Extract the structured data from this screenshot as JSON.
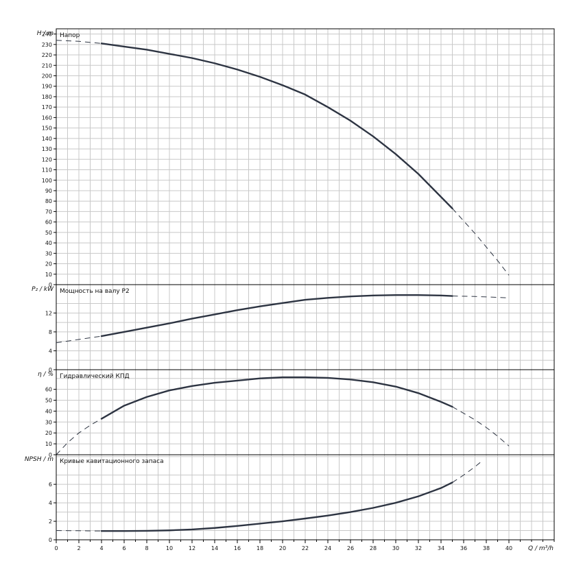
{
  "chart_data": [
    {
      "type": "line",
      "panel": "head",
      "title": "Напор",
      "ylabel": "H / m",
      "ylim": [
        0,
        245
      ],
      "yticks": [
        0,
        10,
        20,
        30,
        40,
        50,
        60,
        70,
        80,
        90,
        100,
        110,
        120,
        130,
        140,
        150,
        160,
        170,
        180,
        190,
        200,
        210,
        220,
        230,
        240
      ],
      "grid": true,
      "series": [
        {
          "style": "dashed",
          "x": [
            0,
            2,
            4
          ],
          "y": [
            234,
            233,
            231
          ]
        },
        {
          "style": "solid",
          "x": [
            4,
            6,
            8,
            10,
            12,
            14,
            16,
            18,
            20,
            22,
            24,
            26,
            28,
            30,
            32,
            34,
            35
          ],
          "y": [
            231,
            228,
            225,
            221,
            217,
            212,
            206,
            199,
            191,
            182,
            170,
            157,
            142,
            125,
            106,
            84,
            73
          ]
        },
        {
          "style": "dashed",
          "x": [
            35,
            36,
            37,
            38,
            39,
            40
          ],
          "y": [
            73,
            61,
            49,
            36,
            23,
            9
          ]
        }
      ]
    },
    {
      "type": "line",
      "panel": "power",
      "title": "Мощность на валу P2",
      "ylabel": "P₂ / kW",
      "ylim": [
        0,
        18
      ],
      "yticks": [
        0,
        4,
        8,
        12
      ],
      "grid": true,
      "series": [
        {
          "style": "dashed",
          "x": [
            0,
            2,
            4
          ],
          "y": [
            5.7,
            6.4,
            7.1
          ]
        },
        {
          "style": "solid",
          "x": [
            4,
            6,
            8,
            10,
            12,
            14,
            16,
            18,
            20,
            22,
            24,
            26,
            28,
            30,
            32,
            34,
            35
          ],
          "y": [
            7.1,
            8.0,
            8.9,
            9.8,
            10.8,
            11.7,
            12.6,
            13.4,
            14.1,
            14.8,
            15.2,
            15.5,
            15.7,
            15.8,
            15.8,
            15.7,
            15.6
          ]
        },
        {
          "style": "dashed",
          "x": [
            35,
            37,
            40
          ],
          "y": [
            15.6,
            15.5,
            15.2
          ]
        }
      ]
    },
    {
      "type": "line",
      "panel": "efficiency",
      "title": "Гидравлический КПД",
      "ylabel": "η / %",
      "ylim": [
        0,
        78
      ],
      "yticks": [
        0,
        10,
        20,
        30,
        40,
        50,
        60
      ],
      "grid": true,
      "series": [
        {
          "style": "dashed",
          "x": [
            0,
            1,
            2,
            3,
            4
          ],
          "y": [
            0,
            11,
            20,
            27,
            33
          ]
        },
        {
          "style": "solid",
          "x": [
            4,
            6,
            8,
            10,
            12,
            14,
            16,
            18,
            20,
            22,
            24,
            26,
            28,
            30,
            32,
            34,
            35
          ],
          "y": [
            33,
            45,
            53,
            59,
            63,
            66,
            68,
            70,
            71,
            71,
            70.5,
            69,
            66.5,
            62.5,
            56.5,
            48.5,
            44
          ]
        },
        {
          "style": "dashed",
          "x": [
            35,
            36,
            37,
            38,
            39,
            40
          ],
          "y": [
            44,
            38,
            32,
            25,
            17,
            8
          ]
        }
      ]
    },
    {
      "type": "line",
      "panel": "npsh",
      "title": "Кривые кавитационного запаса",
      "ylabel": "NPSH / m",
      "ylim": [
        0,
        9.2
      ],
      "yticks": [
        0,
        2,
        4,
        6
      ],
      "grid": true,
      "xlabel": "Q / m³/h",
      "xlim": [
        0,
        44
      ],
      "xticks": [
        0,
        2,
        4,
        6,
        8,
        10,
        12,
        14,
        16,
        18,
        20,
        22,
        24,
        26,
        28,
        30,
        32,
        34,
        36,
        38,
        40
      ],
      "series": [
        {
          "style": "dashed",
          "x": [
            0,
            2,
            4
          ],
          "y": [
            1.0,
            0.98,
            0.95
          ]
        },
        {
          "style": "solid",
          "x": [
            4,
            6,
            8,
            10,
            12,
            14,
            16,
            18,
            20,
            22,
            24,
            26,
            28,
            30,
            32,
            34,
            35
          ],
          "y": [
            0.95,
            0.95,
            0.97,
            1.02,
            1.12,
            1.28,
            1.5,
            1.75,
            2.0,
            2.3,
            2.62,
            3.0,
            3.45,
            4.0,
            4.7,
            5.6,
            6.2
          ]
        },
        {
          "style": "dashed",
          "x": [
            35,
            36,
            37,
            37.5
          ],
          "y": [
            6.2,
            7.0,
            7.9,
            8.4
          ]
        }
      ]
    }
  ]
}
